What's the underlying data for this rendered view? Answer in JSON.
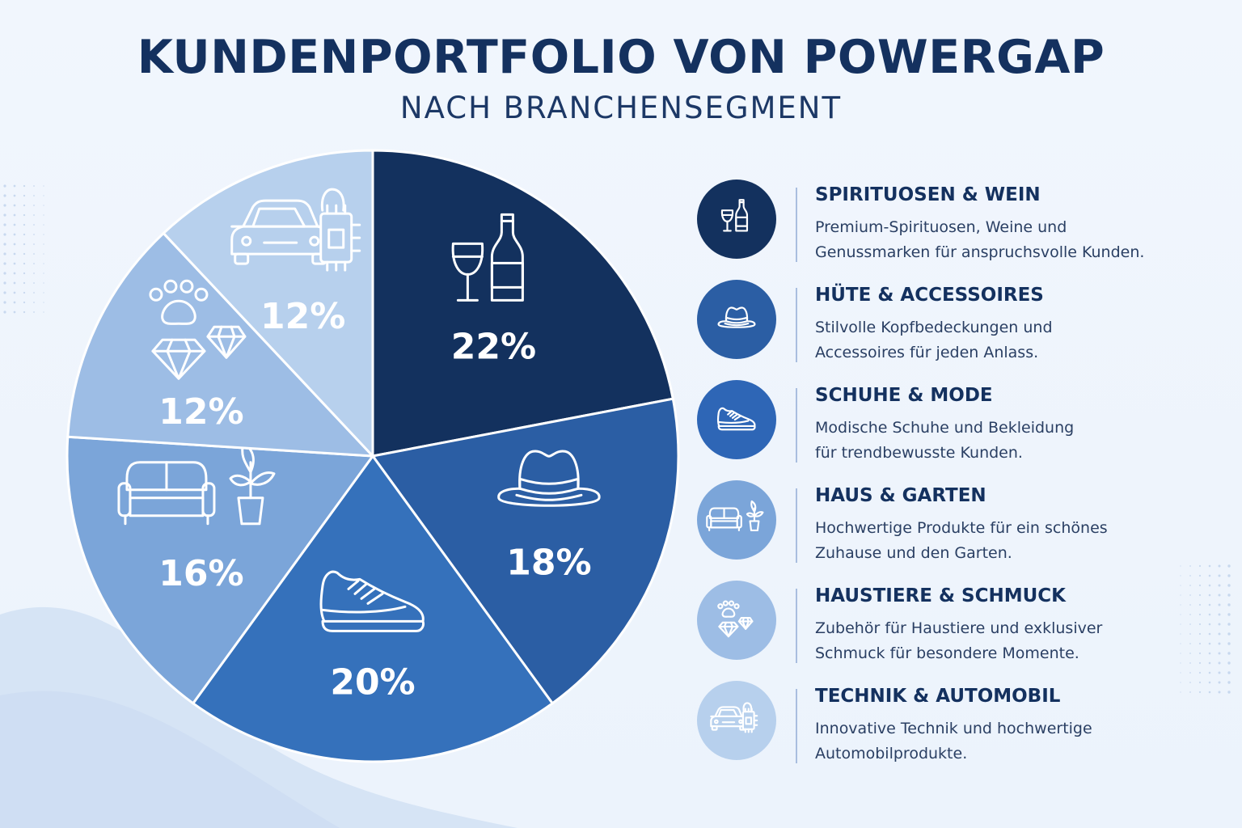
{
  "header": {
    "title": "KUNDENPORTFOLIO VON POWERGAP",
    "subtitle": "NACH BRANCHENSEGMENT"
  },
  "chart_data": {
    "type": "pie",
    "title": "KUNDENPORTFOLIO VON POWERGAP",
    "subtitle": "NACH BRANCHENSEGMENT",
    "value_unit": "%",
    "legend_position": "right",
    "slices": [
      {
        "label": "SPIRITUOSEN & WEIN",
        "value": 22,
        "value_label": "22%",
        "color": "#13315e",
        "icon": "wine-bottle-glass-icon"
      },
      {
        "label": "HÜTE & ACCESSOIRES",
        "value": 18,
        "value_label": "18%",
        "color": "#2b5ea4",
        "icon": "hat-icon"
      },
      {
        "label": "SCHUHE & MODE",
        "value": 20,
        "value_label": "20%",
        "color": "#3571bb",
        "icon": "sneaker-icon"
      },
      {
        "label": "HAUS & GARTEN",
        "value": 16,
        "value_label": "16%",
        "color": "#7ba5d9",
        "icon": "sofa-plant-icon"
      },
      {
        "label": "HAUSTIERE & SCHMUCK",
        "value": 12,
        "value_label": "12%",
        "color": "#9dbde5",
        "icon": "paw-diamond-icon"
      },
      {
        "label": "TECHNIK & AUTOMOBIL",
        "value": 12,
        "value_label": "12%",
        "color": "#b7d0ed",
        "icon": "car-chip-icon"
      }
    ]
  },
  "legend": {
    "items": [
      {
        "name": "SPIRITUOSEN & WEIN",
        "desc_lines": [
          "Premium-Spirituosen, Weine und",
          "Genussmarken für anspruchsvolle Kunden."
        ],
        "circle_color": "#13315e",
        "icon": "wine-bottle-glass-icon"
      },
      {
        "name": "HÜTE & ACCESSOIRES",
        "desc_lines": [
          "Stilvolle Kopfbedeckungen und",
          "Accessoires für jeden Anlass."
        ],
        "circle_color": "#2b5ea4",
        "icon": "hat-icon"
      },
      {
        "name": "SCHUHE & MODE",
        "desc_lines": [
          "Modische Schuhe und Bekleidung",
          "für trendbewusste Kunden."
        ],
        "circle_color": "#2e66b6",
        "icon": "sneaker-icon"
      },
      {
        "name": "HAUS & GARTEN",
        "desc_lines": [
          "Hochwertige Produkte für ein schönes",
          "Zuhause und den Garten."
        ],
        "circle_color": "#7ba5d9",
        "icon": "sofa-plant-icon"
      },
      {
        "name": "HAUSTIERE & SCHMUCK",
        "desc_lines": [
          "Zubehör für Haustiere und exklusiver",
          "Schmuck für besondere Momente."
        ],
        "circle_color": "#9dbde5",
        "icon": "paw-diamond-icon"
      },
      {
        "name": "TECHNIK & AUTOMOBIL",
        "desc_lines": [
          "Innovative Technik und hochwertige",
          "Automobilprodukte."
        ],
        "circle_color": "#b7d0ed",
        "icon": "car-chip-icon"
      }
    ]
  }
}
